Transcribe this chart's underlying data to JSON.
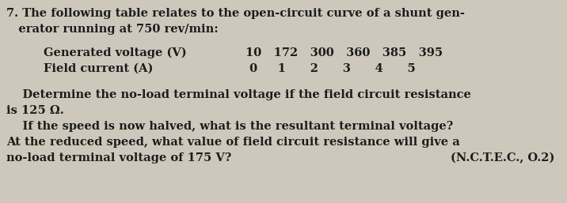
{
  "line1": "7. The following table relates to the open-circuit curve of a shunt gen-",
  "line2": "   erator running at 750 rev/min:",
  "table_label1": "Generated voltage (V)",
  "table_label2": "Field current (A)",
  "table_vals1": "10   172   300   360   385   395",
  "table_vals2": " 0     1      2      3      4      5",
  "para1a": "    Determine the no-load terminal voltage if the field circuit resistance",
  "para1b": "is 125 Ω.",
  "para2a": "    If the speed is now halved, what is the resultant terminal voltage?",
  "para2b": "At the reduced speed, what value of field circuit resistance will give a",
  "para2c_left": "no-load terminal voltage of 175 V?",
  "para2c_right": "(N.C.T.E.C., O.2)",
  "bg_color": "#cec8bc",
  "text_color": "#1c1c1c",
  "font_size": 10.5,
  "fig_width": 7.16,
  "fig_height": 2.57,
  "dpi": 100
}
